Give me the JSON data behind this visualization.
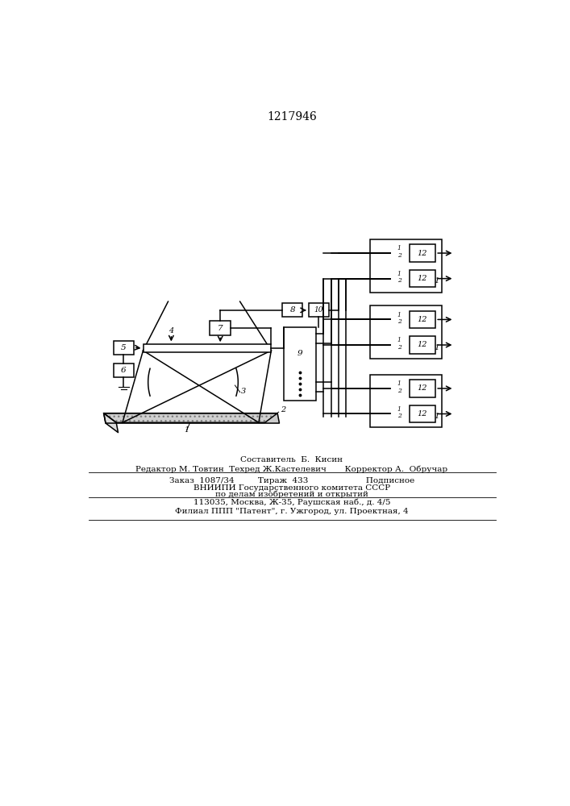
{
  "title": "1217946",
  "bg_color": "#ffffff",
  "line_color": "#000000",
  "footer_line1": "Составитель  Б.  Кисин",
  "footer_line2": "Редактор М. Товтин  Техред Ж.Кастелевич       Корректор А.  Обручар",
  "footer_line3": "Заказ  1087/34         Тираж  433                      Подписное",
  "footer_line4": "ВНИИПИ Государственного комитета СССР",
  "footer_line5": "по делам изобретений и открытий",
  "footer_line6": "113035, Москва, Ж-35, Раушская наб., д. 4/5",
  "footer_line7": "Филиал ППП \"Патент\", г. Ужгород, ул. Проектная, 4"
}
